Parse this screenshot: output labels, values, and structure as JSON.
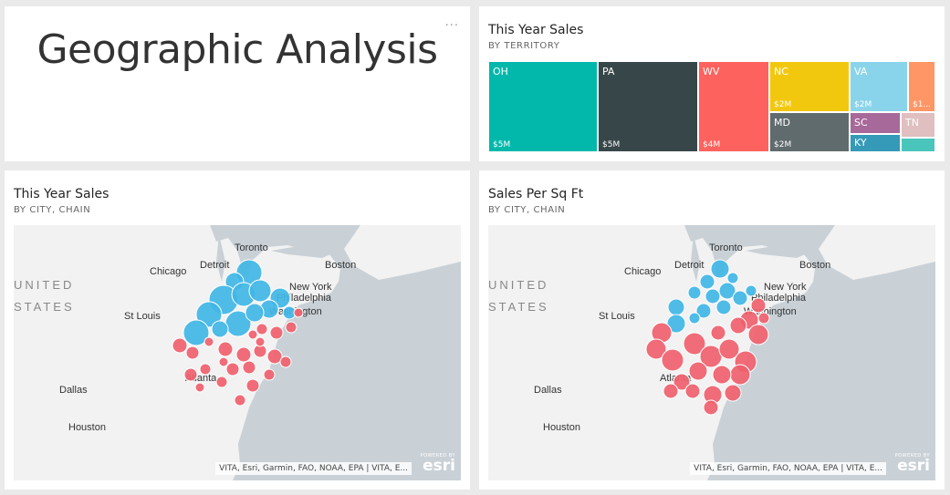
{
  "dashboard": {
    "title": "Geographic Analysis",
    "more_label": "···"
  },
  "treemap_tile": {
    "title": "This Year Sales",
    "subtitle": "BY TERRITORY",
    "cells": [
      {
        "label": "OH",
        "value": "$5M",
        "color": "#01b8aa"
      },
      {
        "label": "PA",
        "value": "$5M",
        "color": "#374649"
      },
      {
        "label": "WV",
        "value": "$4M",
        "color": "#fd625e"
      },
      {
        "label": "NC",
        "value": "$2M",
        "color": "#f2c80f"
      },
      {
        "label": "MD",
        "value": "$2M",
        "color": "#5f6b6d"
      },
      {
        "label": "VA",
        "value": "$2M",
        "color": "#8ad4eb"
      },
      {
        "label": "SC",
        "value": "",
        "color": "#a66999"
      },
      {
        "label": "KY",
        "value": "",
        "color": "#3599b8"
      },
      {
        "label": "",
        "value": "$1...",
        "color": "#fe9666"
      },
      {
        "label": "TN",
        "value": "",
        "color": "#dfbfbf"
      },
      {
        "label": "",
        "value": "",
        "color": "#4ac5bb"
      }
    ]
  },
  "map_sales": {
    "title": "This Year Sales",
    "subtitle": "BY CITY, CHAIN",
    "attribution": "VITA, Esri, Garmin, FAO, NOAA, EPA | VITA, E...",
    "esri_powered": "POWERED BY",
    "esri_name": "esri"
  },
  "map_sqft": {
    "title": "Sales Per Sq Ft",
    "subtitle": "BY CITY, CHAIN",
    "attribution": "VITA, Esri, Garmin, FAO, NOAA, EPA | VITA, E...",
    "esri_powered": "POWERED BY",
    "esri_name": "esri"
  },
  "map_labels": {
    "toronto": "Toronto",
    "chicago": "Chicago",
    "detroit": "Detroit",
    "boston": "Boston",
    "new_york": "New York",
    "philadelphia": "Philadelphia",
    "washington": "Washington",
    "st_louis": "St Louis",
    "atlanta": "Atlanta",
    "dallas": "Dallas",
    "houston": "Houston",
    "united": "UNITED",
    "states": "STATES"
  },
  "colors": {
    "chain_blue": "#41b6e6",
    "chain_red": "#f0616e"
  }
}
